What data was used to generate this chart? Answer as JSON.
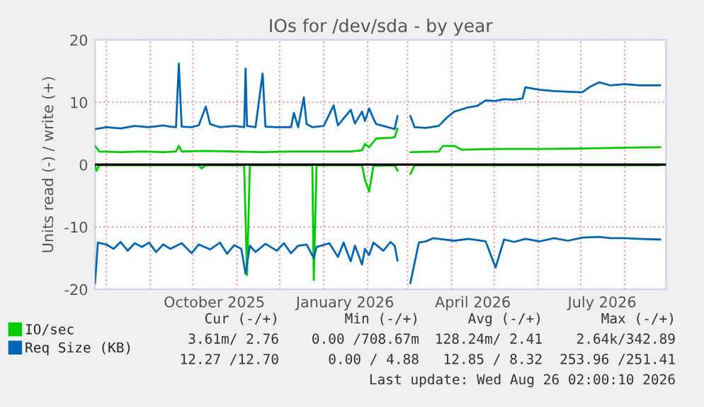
{
  "chart_data": {
    "type": "line",
    "title": "IOs for /dev/sda - by year",
    "ylabel": "Units read (-) / write (+)",
    "xlim": [
      "2025-07-24",
      "2026-08-30"
    ],
    "ylim": [
      -20,
      20
    ],
    "yticks": [
      -20,
      -10,
      0,
      10,
      20
    ],
    "xticks": [
      {
        "value": "2025-08-01",
        "label": null
      },
      {
        "value": "2025-09-01",
        "label": null
      },
      {
        "value": "2025-10-01",
        "label": null
      },
      {
        "value": "2025-11-01",
        "label": null
      },
      {
        "value": "2025-12-01",
        "label": null
      },
      {
        "value": "2026-01-01",
        "label": null
      },
      {
        "value": "2026-02-01",
        "label": null
      },
      {
        "value": "2026-03-01",
        "label": null
      },
      {
        "value": "2026-04-01",
        "label": null
      },
      {
        "value": "2026-05-01",
        "label": null
      },
      {
        "value": "2026-06-01",
        "label": null
      },
      {
        "value": "2026-07-01",
        "label": null
      },
      {
        "value": "2026-08-01",
        "label": null
      },
      {
        "value": "2025-10-16",
        "label": "October 2025"
      },
      {
        "value": "2026-01-16",
        "label": "January 2026"
      },
      {
        "value": "2026-04-16",
        "label": "April 2026"
      },
      {
        "value": "2026-07-16",
        "label": "July 2026"
      }
    ],
    "grid": true,
    "legend": "bottom",
    "marker": "none",
    "line_style": "solid",
    "ref_lines": [
      {
        "axis": "y",
        "value": 0,
        "color": "#000000"
      }
    ],
    "series": [
      {
        "name": "IO/sec",
        "color": "#00cc00",
        "x": [
          "2025-07-24",
          "2025-07-27",
          "2025-08-11",
          "2025-08-26",
          "2025-09-10",
          "2025-09-19",
          "2025-09-21",
          "2025-09-23",
          "2025-10-10",
          "2025-10-30",
          "2025-11-19",
          "2025-12-09",
          "2026-01-01",
          "2026-01-20",
          "2026-01-28",
          "2026-01-30",
          "2026-02-02",
          "2026-02-07",
          "2026-02-17",
          "2026-02-20",
          "2026-02-22",
          "2026-02-26",
          "2026-03-03",
          "2026-03-23",
          "2026-03-26",
          "2026-04-03",
          "2026-04-08",
          "2026-05-02",
          "2026-06-02",
          "2026-07-02",
          "2026-08-01",
          "2026-08-26"
        ],
        "values": [
          3.0,
          2.1,
          2.0,
          2.1,
          2.0,
          2.1,
          3.0,
          2.1,
          2.2,
          2.1,
          2.0,
          2.1,
          2.1,
          2.1,
          2.3,
          3.3,
          2.8,
          4.2,
          4.3,
          4.4,
          5.8,
          null,
          2.0,
          2.1,
          3.0,
          3.0,
          2.4,
          2.5,
          2.5,
          2.6,
          2.7,
          2.8
        ]
      },
      {
        "color": "#00cc00",
        "x": [
          "2025-07-24",
          "2025-07-25",
          "2025-07-27",
          "2025-10-05",
          "2025-10-07",
          "2025-10-10",
          "2025-11-06",
          "2025-11-08",
          "2025-11-10",
          "2025-12-24",
          "2025-12-25",
          "2025-12-27",
          "2026-01-28",
          "2026-01-30",
          "2026-02-02",
          "2026-02-05",
          "2026-02-20",
          "2026-02-22",
          "2026-02-26",
          "2026-03-03",
          "2026-03-06",
          "2026-08-26"
        ],
        "values": [
          -0.1,
          -1.0,
          -0.1,
          -0.1,
          -0.6,
          -0.1,
          -0.1,
          -17.7,
          -0.1,
          -0.1,
          -18.5,
          -0.1,
          -0.1,
          -2.4,
          -4.3,
          -0.2,
          -0.1,
          -1.0,
          null,
          -1.5,
          -0.1,
          -0.1
        ]
      },
      {
        "name": "Req Size (KB)",
        "color": "#0066b3",
        "x": [
          "2025-07-24",
          "2025-08-01",
          "2025-08-11",
          "2025-08-21",
          "2025-08-31",
          "2025-09-10",
          "2025-09-15",
          "2025-09-19",
          "2025-09-21",
          "2025-09-23",
          "2025-09-30",
          "2025-10-05",
          "2025-10-10",
          "2025-10-13",
          "2025-10-20",
          "2025-10-30",
          "2025-11-06",
          "2025-11-07",
          "2025-11-08",
          "2025-11-14",
          "2025-11-19",
          "2025-11-21",
          "2025-11-29",
          "2025-12-09",
          "2025-12-11",
          "2025-12-14",
          "2025-12-18",
          "2025-12-20",
          "2025-12-24",
          "2026-01-01",
          "2026-01-08",
          "2026-01-11",
          "2026-01-20",
          "2026-01-23",
          "2026-01-28",
          "2026-01-30",
          "2026-02-02",
          "2026-02-05",
          "2026-02-07",
          "2026-02-12",
          "2026-02-17",
          "2026-02-20",
          "2026-02-22",
          "2026-02-26",
          "2026-03-03",
          "2026-03-06",
          "2026-03-14",
          "2026-03-23",
          "2026-03-29",
          "2026-04-03",
          "2026-04-13",
          "2026-04-19",
          "2026-04-25",
          "2026-05-02",
          "2026-05-08",
          "2026-05-15",
          "2026-05-21",
          "2026-05-23",
          "2026-06-02",
          "2026-06-12",
          "2026-06-22",
          "2026-07-02",
          "2026-07-07",
          "2026-07-14",
          "2026-07-22",
          "2026-08-01",
          "2026-08-11",
          "2026-08-26"
        ],
        "values": [
          5.7,
          6.0,
          5.8,
          6.2,
          6.0,
          6.3,
          6.1,
          6.0,
          16.2,
          6.1,
          6.0,
          6.3,
          9.3,
          6.5,
          6.0,
          6.2,
          6.0,
          15.4,
          6.2,
          6.0,
          14.6,
          6.1,
          6.0,
          6.0,
          8.3,
          6.0,
          10.8,
          6.5,
          6.0,
          6.2,
          9.5,
          6.3,
          8.8,
          6.6,
          8.5,
          7.0,
          9.0,
          7.4,
          6.5,
          6.2,
          5.9,
          5.7,
          7.8,
          null,
          7.8,
          6.0,
          5.9,
          6.2,
          7.6,
          8.5,
          9.2,
          9.4,
          10.3,
          10.2,
          10.5,
          10.4,
          10.6,
          12.4,
          12.0,
          11.8,
          11.7,
          11.6,
          12.4,
          13.2,
          12.7,
          12.9,
          12.7,
          12.7
        ]
      },
      {
        "color": "#0066b3",
        "x": [
          "2025-07-24",
          "2025-07-26",
          "2025-08-01",
          "2025-08-06",
          "2025-08-11",
          "2025-08-16",
          "2025-08-21",
          "2025-08-26",
          "2025-08-31",
          "2025-09-05",
          "2025-09-10",
          "2025-09-15",
          "2025-09-23",
          "2025-09-30",
          "2025-10-05",
          "2025-10-13",
          "2025-10-20",
          "2025-10-25",
          "2025-10-30",
          "2025-11-04",
          "2025-11-07",
          "2025-11-10",
          "2025-11-14",
          "2025-11-21",
          "2025-11-29",
          "2025-12-04",
          "2025-12-09",
          "2025-12-14",
          "2025-12-20",
          "2025-12-25",
          "2025-12-27",
          "2026-01-05",
          "2026-01-11",
          "2026-01-15",
          "2026-01-20",
          "2026-01-23",
          "2026-01-28",
          "2026-01-30",
          "2026-02-02",
          "2026-02-05",
          "2026-02-12",
          "2026-02-17",
          "2026-02-20",
          "2026-02-22",
          "2026-02-26",
          "2026-03-03",
          "2026-03-09",
          "2026-03-14",
          "2026-03-19",
          "2026-03-26",
          "2026-04-03",
          "2026-04-13",
          "2026-04-25",
          "2026-05-02",
          "2026-05-08",
          "2026-05-15",
          "2026-05-23",
          "2026-06-02",
          "2026-06-12",
          "2026-06-22",
          "2026-07-02",
          "2026-07-14",
          "2026-07-22",
          "2026-08-01",
          "2026-08-11",
          "2026-08-26"
        ],
        "values": [
          -19.0,
          -12.5,
          -12.8,
          -13.5,
          -12.4,
          -13.8,
          -12.6,
          -13.2,
          -12.5,
          -14.0,
          -12.8,
          -13.5,
          -12.6,
          -14.2,
          -12.8,
          -13.6,
          -12.5,
          -14.3,
          -12.9,
          -13.5,
          -17.5,
          -13.0,
          -14.0,
          -12.7,
          -13.8,
          -12.6,
          -14.2,
          -13.0,
          -12.8,
          -15.0,
          -13.2,
          -12.6,
          -14.8,
          -12.5,
          -15.5,
          -13.0,
          -16.0,
          -13.5,
          -14.5,
          -12.5,
          -13.8,
          -12.4,
          -13.0,
          -15.4,
          null,
          -19.0,
          -12.5,
          -12.3,
          -11.8,
          -12.0,
          -12.2,
          -11.9,
          -12.3,
          -16.5,
          -12.0,
          -12.4,
          -11.9,
          -12.3,
          -11.8,
          -12.2,
          -11.7,
          -11.6,
          -11.8,
          -11.8,
          -11.9,
          -12.0
        ]
      }
    ],
    "annotations": [
      "Cur (-/+)",
      "Min (-/+)",
      "Avg (-/+)",
      "Max (-/+)",
      "3.61m/ 2.76",
      "0.00 /708.67m",
      "128.24m/ 2.41",
      "2.64k/342.89",
      "12.27 /12.70",
      "0.00 / 4.88",
      "12.85 / 8.32",
      "253.96 /251.41",
      "Last update: Wed Aug 26 02:00:10 2026"
    ]
  }
}
